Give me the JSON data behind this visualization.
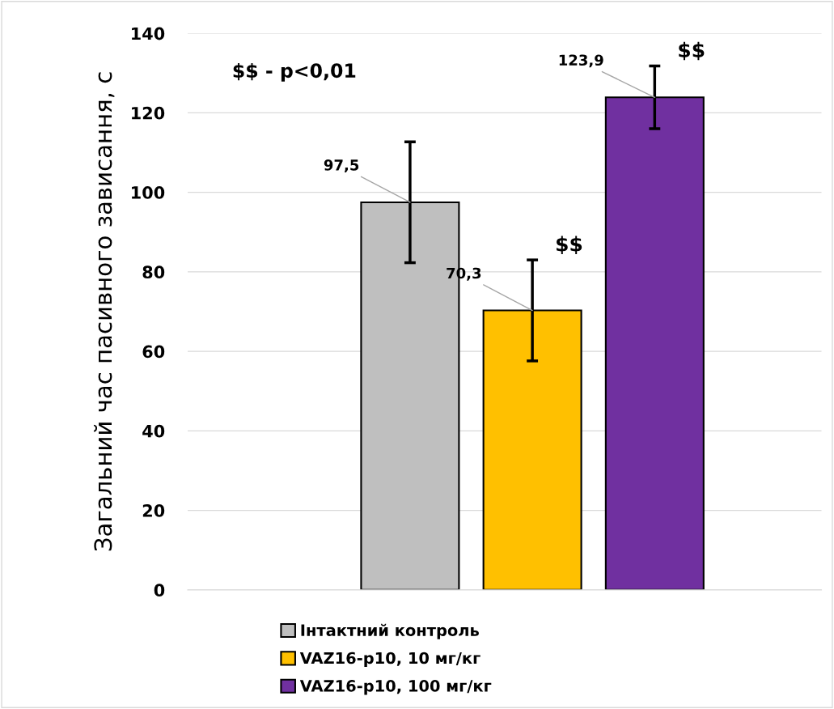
{
  "chart_data": {
    "type": "bar",
    "ylabel": "Загальний час пасивного зависання, с",
    "categories": [
      null
    ],
    "series": [
      {
        "name": "Інтактний контроль",
        "color": "#bfbfbf",
        "values": [
          97.5
        ],
        "errors": [
          15.2
        ],
        "value_labels": [
          "97,5"
        ]
      },
      {
        "name": "VAZ16-p10, 10 мг/кг",
        "color": "#ffc000",
        "values": [
          70.3
        ],
        "errors": [
          12.7
        ],
        "value_labels": [
          "70,3"
        ]
      },
      {
        "name": "VAZ16-p10, 100 мг/кг",
        "color": "#7030a0",
        "values": [
          123.9
        ],
        "errors": [
          7.9
        ],
        "value_labels": [
          "123,9"
        ]
      }
    ],
    "ylim": [
      0,
      140
    ],
    "yticks": [
      0,
      20,
      40,
      60,
      80,
      100,
      120,
      140
    ],
    "grid": "y",
    "legend": "bottom",
    "annotations": [
      "$$ - p<0,01",
      "$$",
      "$$"
    ]
  }
}
